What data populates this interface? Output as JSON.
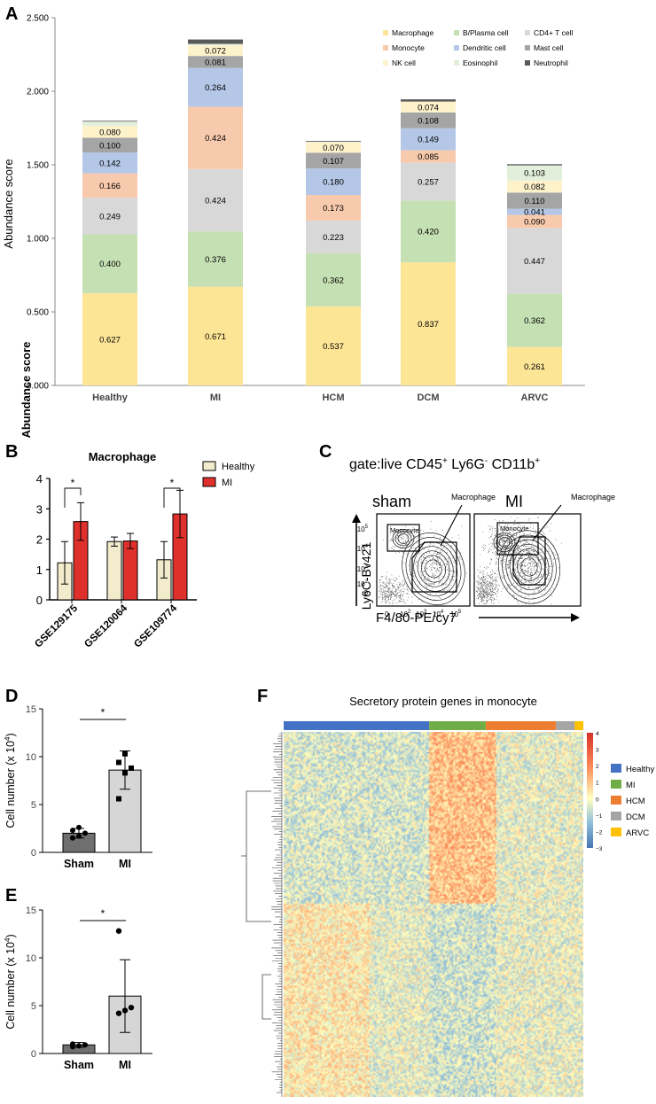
{
  "panels": {
    "A": {
      "letter": "A"
    },
    "B": {
      "letter": "B"
    },
    "C": {
      "letter": "C"
    },
    "D": {
      "letter": "D"
    },
    "E": {
      "letter": "E"
    },
    "F": {
      "letter": "F"
    }
  },
  "colors": {
    "Macrophage": "#fde596",
    "B/Plasma cell": "#c5e0b3",
    "CD4+ T cell": "#d8d8d8",
    "Monocyte": "#f8caad",
    "Dendritic cell": "#b4c7e7",
    "Mast cell": "#a5a5a5",
    "NK cell": "#fef2cb",
    "Eosinophil": "#e2efda",
    "Neutrophil": "#595959",
    "healthy_bar": "#f2eccd",
    "mi_bar": "#e0302b",
    "sham_bar": "#6f6f6f",
    "mi_gray_bar": "#d6d6d6",
    "heat_Healthy": "#4472c4",
    "heat_MI": "#70ad47",
    "heat_HCM": "#ed7d31",
    "heat_DCM": "#a5a5a5",
    "heat_ARVC": "#ffc000"
  },
  "chart_data": [
    {
      "id": "A",
      "type": "bar",
      "stacked": true,
      "ylabel": "Abundance score",
      "ylim": [
        0,
        2.5
      ],
      "yticks": [
        "0.000",
        "0.500",
        "1.000",
        "1.500",
        "2.000",
        "2.500"
      ],
      "categories": [
        "Healthy",
        "MI",
        "HCM",
        "DCM",
        "ARVC"
      ],
      "series": [
        {
          "name": "Macrophage",
          "values": [
            0.627,
            0.671,
            0.537,
            0.837,
            0.261
          ],
          "labels": [
            "0.627",
            "0.671",
            "0.537",
            "0.837",
            "0.261"
          ]
        },
        {
          "name": "B/Plasma cell",
          "values": [
            0.4,
            0.376,
            0.362,
            0.42,
            0.362
          ],
          "labels": [
            "0.400",
            "0.376",
            "0.362",
            "0.420",
            "0.362"
          ]
        },
        {
          "name": "CD4+ T cell",
          "values": [
            0.249,
            0.424,
            0.223,
            0.257,
            0.447
          ],
          "labels": [
            "0.249",
            "0.424",
            "0.223",
            "0.257",
            "0.447"
          ]
        },
        {
          "name": "Monocyte",
          "values": [
            0.166,
            0.424,
            0.173,
            0.085,
            0.09
          ],
          "labels": [
            "0.166",
            "0.424",
            "0.173",
            "0.085",
            "0.090"
          ]
        },
        {
          "name": "Dendritic cell",
          "values": [
            0.142,
            0.264,
            0.18,
            0.149,
            0.041
          ],
          "labels": [
            "0.142",
            "0.264",
            "0.180",
            "0.149",
            "0.041"
          ]
        },
        {
          "name": "Mast cell",
          "values": [
            0.1,
            0.081,
            0.107,
            0.108,
            0.11
          ],
          "labels": [
            "0.100",
            "0.081",
            "0.107",
            "0.108",
            "0.110"
          ]
        },
        {
          "name": "NK cell",
          "values": [
            0.08,
            0.072,
            0.07,
            0.074,
            0.082
          ],
          "labels": [
            "0.080",
            "0.072",
            "0.070",
            "0.074",
            "0.082"
          ]
        },
        {
          "name": "Eosinophil",
          "values": [
            0.03,
            0.01,
            0.005,
            0.0,
            0.103
          ],
          "labels": [
            "",
            "",
            "",
            "",
            "0.103"
          ]
        },
        {
          "name": "Neutrophil",
          "values": [
            0.005,
            0.03,
            0.005,
            0.015,
            0.008
          ],
          "labels": [
            "",
            "",
            "",
            "",
            ""
          ]
        }
      ],
      "legend": [
        "Macrophage",
        "B/Plasma cell",
        "CD4+ T cell",
        "Monocyte",
        "Dendritic cell",
        "Mast cell",
        "NK cell",
        "Eosinophil",
        "Neutrophil"
      ]
    },
    {
      "id": "B",
      "type": "bar",
      "title": "Macrophage",
      "ylabel": "Abundance score",
      "ylim": [
        0,
        4
      ],
      "yticks": [
        "0",
        "1",
        "2",
        "3",
        "4"
      ],
      "categories": [
        "GSE129175",
        "GSE120064",
        "GSE109774"
      ],
      "series": [
        {
          "name": "Healthy",
          "values": [
            1.22,
            1.92,
            1.32
          ],
          "err": [
            0.7,
            0.15,
            0.6
          ]
        },
        {
          "name": "MI",
          "values": [
            2.58,
            1.94,
            2.83
          ],
          "err": [
            0.62,
            0.25,
            0.78
          ]
        }
      ],
      "significance": [
        "*",
        "",
        "*"
      ]
    },
    {
      "id": "D",
      "type": "bar",
      "ylabel": "Cell number (x 10",
      "ylabel_sup": "4",
      "ylabel_end": ")",
      "ylim": [
        0,
        15
      ],
      "yticks": [
        "0",
        "5",
        "10",
        "15"
      ],
      "categories": [
        "Sham",
        "MI"
      ],
      "values": [
        2.0,
        8.6
      ],
      "err": [
        0.5,
        2.0
      ],
      "points": [
        [
          1.5,
          1.7,
          2.0,
          2.3,
          2.6
        ],
        [
          5.6,
          8.3,
          8.8,
          9.4,
          10.3
        ]
      ],
      "significance": "*"
    },
    {
      "id": "E",
      "type": "bar",
      "ylabel": "Cell number (x 10",
      "ylabel_sup": "4",
      "ylabel_end": ")",
      "ylim": [
        0,
        15
      ],
      "yticks": [
        "0",
        "5",
        "10",
        "15"
      ],
      "categories": [
        "Sham",
        "MI"
      ],
      "values": [
        0.9,
        6.0
      ],
      "err": [
        0.25,
        3.8
      ],
      "points": [
        [
          0.7,
          0.8,
          0.9,
          1.0
        ],
        [
          4.2,
          4.5,
          4.8,
          12.8
        ]
      ],
      "significance": "*"
    },
    {
      "id": "F",
      "type": "heatmap",
      "title": "Secretory protein genes in monocyte",
      "groups": [
        "Healthy",
        "MI",
        "HCM",
        "DCM",
        "ARVC"
      ],
      "group_sizes": [
        85,
        33,
        41,
        11,
        5
      ],
      "scale_ticks": [
        "4",
        "3",
        "2",
        "1",
        "0",
        "−1",
        "−2",
        "−3"
      ],
      "scale_range": [
        -3,
        4
      ]
    }
  ],
  "flow": {
    "gate_prefix": "gate:live CD45",
    "gate_sup1": "+",
    "gate_mid1": " Ly6G",
    "gate_sup2": "-",
    "gate_mid2": " CD11b",
    "gate_sup3": "+",
    "sham_label": "sham",
    "mi_label": "MI",
    "macrophage_label": "Macrophage",
    "monocyte_label": "Monocyte",
    "y_axis": "Ly6C-Bv421",
    "x_axis": "F4/80-PE/cy7",
    "y_ticks": [
      "10",
      "10",
      "10",
      "10",
      "0"
    ],
    "y_exps": [
      "5",
      "4",
      "3",
      "2",
      ""
    ],
    "x_ticks": [
      "0",
      "10",
      "10",
      "10",
      "10"
    ],
    "x_exps": [
      "",
      "2",
      "3",
      "4",
      "5"
    ]
  }
}
